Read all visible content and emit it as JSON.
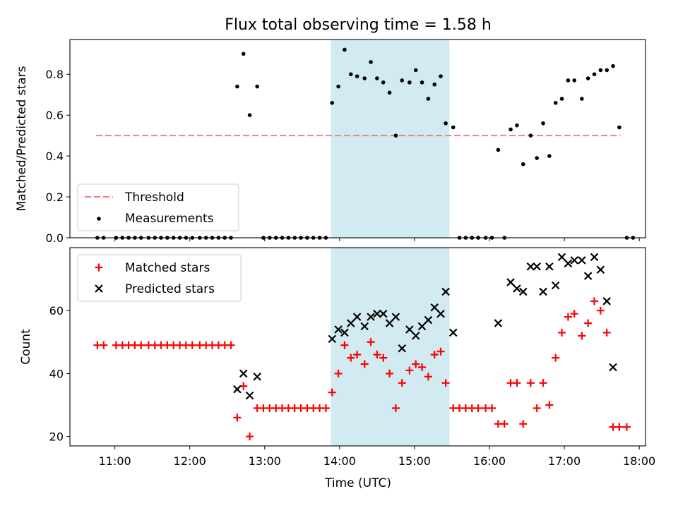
{
  "title": "Flux total observing time = 1.58 h",
  "colors": {
    "threshold": "#f08080",
    "measurement": "#000000",
    "matched": "#ff0000",
    "predicted": "#000000",
    "shade": "#add8e6"
  },
  "chart_data": [
    {
      "type": "scatter",
      "ylabel": "Matched/Predicted stars",
      "ylim": [
        0,
        0.97
      ],
      "yticks": [
        "0.0",
        "0.2",
        "0.4",
        "0.6",
        "0.8"
      ],
      "xlim": [
        "10:24",
        "18:05"
      ],
      "shaded_span": [
        "13:53",
        "15:28"
      ],
      "legend": {
        "placement": "lower-left",
        "entries": [
          "Threshold",
          "Measurements"
        ]
      },
      "threshold": {
        "name": "Threshold",
        "y": 0.5,
        "x": [
          "10:45",
          "17:45"
        ]
      },
      "series": [
        {
          "name": "Measurements",
          "points": [
            [
              "10:46",
              0
            ],
            [
              "10:51",
              0
            ],
            [
              "11:01",
              0
            ],
            [
              "11:06",
              0
            ],
            [
              "11:11",
              0
            ],
            [
              "11:16",
              0
            ],
            [
              "11:21",
              0
            ],
            [
              "11:27",
              0
            ],
            [
              "11:32",
              0
            ],
            [
              "11:37",
              0
            ],
            [
              "11:42",
              0
            ],
            [
              "11:47",
              0
            ],
            [
              "11:52",
              0
            ],
            [
              "11:57",
              0
            ],
            [
              "12:02",
              0
            ],
            [
              "12:08",
              0
            ],
            [
              "12:13",
              0
            ],
            [
              "12:18",
              0
            ],
            [
              "12:23",
              0
            ],
            [
              "12:28",
              0
            ],
            [
              "12:33",
              0
            ],
            [
              "12:38",
              0.74
            ],
            [
              "12:43",
              0.9
            ],
            [
              "12:48",
              0.6
            ],
            [
              "12:54",
              0.74
            ],
            [
              "12:59",
              0
            ],
            [
              "13:04",
              0
            ],
            [
              "13:09",
              0
            ],
            [
              "13:14",
              0
            ],
            [
              "13:19",
              0
            ],
            [
              "13:24",
              0
            ],
            [
              "13:29",
              0
            ],
            [
              "13:34",
              0
            ],
            [
              "13:39",
              0
            ],
            [
              "13:44",
              0
            ],
            [
              "13:49",
              0
            ],
            [
              "13:54",
              0.66
            ],
            [
              "13:59",
              0.74
            ],
            [
              "14:04",
              0.92
            ],
            [
              "14:09",
              0.8
            ],
            [
              "14:14",
              0.79
            ],
            [
              "14:20",
              0.78
            ],
            [
              "14:25",
              0.86
            ],
            [
              "14:30",
              0.78
            ],
            [
              "14:35",
              0.76
            ],
            [
              "14:40",
              0.71
            ],
            [
              "14:45",
              0.5
            ],
            [
              "14:50",
              0.77
            ],
            [
              "14:56",
              0.76
            ],
            [
              "15:01",
              0.82
            ],
            [
              "15:06",
              0.76
            ],
            [
              "15:11",
              0.68
            ],
            [
              "15:16",
              0.75
            ],
            [
              "15:21",
              0.79
            ],
            [
              "15:25",
              0.56
            ],
            [
              "15:31",
              0.54
            ],
            [
              "15:36",
              0
            ],
            [
              "15:41",
              0
            ],
            [
              "15:46",
              0
            ],
            [
              "15:51",
              0
            ],
            [
              "15:57",
              0
            ],
            [
              "16:02",
              0
            ],
            [
              "16:07",
              0.43
            ],
            [
              "16:12",
              0
            ],
            [
              "16:17",
              0.53
            ],
            [
              "16:22",
              0.55
            ],
            [
              "16:27",
              0.36
            ],
            [
              "16:33",
              0.5
            ],
            [
              "16:38",
              0.39
            ],
            [
              "16:43",
              0.56
            ],
            [
              "16:48",
              0.4
            ],
            [
              "16:53",
              0.66
            ],
            [
              "16:58",
              0.68
            ],
            [
              "17:03",
              0.77
            ],
            [
              "17:08",
              0.77
            ],
            [
              "17:14",
              0.68
            ],
            [
              "17:19",
              0.78
            ],
            [
              "17:24",
              0.8
            ],
            [
              "17:29",
              0.82
            ],
            [
              "17:34",
              0.82
            ],
            [
              "17:39",
              0.84
            ],
            [
              "17:44",
              0.54
            ],
            [
              "17:50",
              0
            ],
            [
              "17:55",
              0
            ]
          ]
        }
      ]
    },
    {
      "type": "scatter",
      "ylabel": "Count",
      "xlabel": "Time (UTC)",
      "ylim": [
        17,
        80
      ],
      "yticks": [
        "20",
        "40",
        "60"
      ],
      "xlim": [
        "10:24",
        "18:05"
      ],
      "xticks": [
        "11:00",
        "12:00",
        "13:00",
        "14:00",
        "15:00",
        "16:00",
        "17:00",
        "18:00"
      ],
      "shaded_span": [
        "13:53",
        "15:28"
      ],
      "legend": {
        "placement": "upper-left",
        "entries": [
          "Matched stars",
          "Predicted stars"
        ]
      },
      "series": [
        {
          "name": "Matched stars",
          "marker": "plus",
          "points": [
            [
              "10:46",
              49
            ],
            [
              "10:51",
              49
            ],
            [
              "11:01",
              49
            ],
            [
              "11:06",
              49
            ],
            [
              "11:11",
              49
            ],
            [
              "11:16",
              49
            ],
            [
              "11:21",
              49
            ],
            [
              "11:27",
              49
            ],
            [
              "11:32",
              49
            ],
            [
              "11:37",
              49
            ],
            [
              "11:42",
              49
            ],
            [
              "11:47",
              49
            ],
            [
              "11:52",
              49
            ],
            [
              "11:57",
              49
            ],
            [
              "12:02",
              49
            ],
            [
              "12:08",
              49
            ],
            [
              "12:13",
              49
            ],
            [
              "12:18",
              49
            ],
            [
              "12:23",
              49
            ],
            [
              "12:28",
              49
            ],
            [
              "12:33",
              49
            ],
            [
              "12:38",
              26
            ],
            [
              "12:43",
              36
            ],
            [
              "12:48",
              20
            ],
            [
              "12:54",
              29
            ],
            [
              "12:59",
              29
            ],
            [
              "13:04",
              29
            ],
            [
              "13:09",
              29
            ],
            [
              "13:14",
              29
            ],
            [
              "13:19",
              29
            ],
            [
              "13:24",
              29
            ],
            [
              "13:29",
              29
            ],
            [
              "13:34",
              29
            ],
            [
              "13:39",
              29
            ],
            [
              "13:44",
              29
            ],
            [
              "13:49",
              29
            ],
            [
              "13:54",
              34
            ],
            [
              "13:59",
              40
            ],
            [
              "14:04",
              49
            ],
            [
              "14:09",
              45
            ],
            [
              "14:14",
              46
            ],
            [
              "14:20",
              43
            ],
            [
              "14:25",
              50
            ],
            [
              "14:30",
              46
            ],
            [
              "14:35",
              45
            ],
            [
              "14:40",
              40
            ],
            [
              "14:45",
              29
            ],
            [
              "14:50",
              37
            ],
            [
              "14:56",
              41
            ],
            [
              "15:01",
              43
            ],
            [
              "15:06",
              42
            ],
            [
              "15:11",
              39
            ],
            [
              "15:16",
              46
            ],
            [
              "15:21",
              47
            ],
            [
              "15:25",
              37
            ],
            [
              "15:31",
              29
            ],
            [
              "15:36",
              29
            ],
            [
              "15:41",
              29
            ],
            [
              "15:46",
              29
            ],
            [
              "15:51",
              29
            ],
            [
              "15:57",
              29
            ],
            [
              "16:02",
              29
            ],
            [
              "16:07",
              24
            ],
            [
              "16:12",
              24
            ],
            [
              "16:17",
              37
            ],
            [
              "16:22",
              37
            ],
            [
              "16:27",
              24
            ],
            [
              "16:33",
              37
            ],
            [
              "16:38",
              29
            ],
            [
              "16:43",
              37
            ],
            [
              "16:48",
              30
            ],
            [
              "16:53",
              45
            ],
            [
              "16:58",
              53
            ],
            [
              "17:03",
              58
            ],
            [
              "17:08",
              59
            ],
            [
              "17:14",
              52
            ],
            [
              "17:19",
              56
            ],
            [
              "17:24",
              63
            ],
            [
              "17:29",
              60
            ],
            [
              "17:34",
              53
            ],
            [
              "17:39",
              23
            ],
            [
              "17:44",
              23
            ],
            [
              "17:50",
              23
            ]
          ]
        },
        {
          "name": "Predicted stars",
          "marker": "x",
          "points": [
            [
              "12:38",
              35
            ],
            [
              "12:43",
              40
            ],
            [
              "12:48",
              33
            ],
            [
              "12:54",
              39
            ],
            [
              "13:54",
              51
            ],
            [
              "13:59",
              54
            ],
            [
              "14:04",
              53
            ],
            [
              "14:09",
              56
            ],
            [
              "14:14",
              58
            ],
            [
              "14:20",
              55
            ],
            [
              "14:25",
              58
            ],
            [
              "14:30",
              59
            ],
            [
              "14:35",
              59
            ],
            [
              "14:40",
              56
            ],
            [
              "14:45",
              58
            ],
            [
              "14:50",
              48
            ],
            [
              "14:56",
              54
            ],
            [
              "15:01",
              52
            ],
            [
              "15:06",
              55
            ],
            [
              "15:11",
              57
            ],
            [
              "15:16",
              61
            ],
            [
              "15:21",
              59
            ],
            [
              "15:25",
              66
            ],
            [
              "15:31",
              53
            ],
            [
              "16:07",
              56
            ],
            [
              "16:17",
              69
            ],
            [
              "16:22",
              67
            ],
            [
              "16:27",
              66
            ],
            [
              "16:33",
              74
            ],
            [
              "16:38",
              74
            ],
            [
              "16:43",
              66
            ],
            [
              "16:48",
              74
            ],
            [
              "16:53",
              68
            ],
            [
              "16:58",
              77
            ],
            [
              "17:03",
              75
            ],
            [
              "17:08",
              76
            ],
            [
              "17:14",
              76
            ],
            [
              "17:19",
              71
            ],
            [
              "17:24",
              77
            ],
            [
              "17:29",
              73
            ],
            [
              "17:34",
              63
            ],
            [
              "17:39",
              42
            ]
          ]
        }
      ]
    }
  ]
}
